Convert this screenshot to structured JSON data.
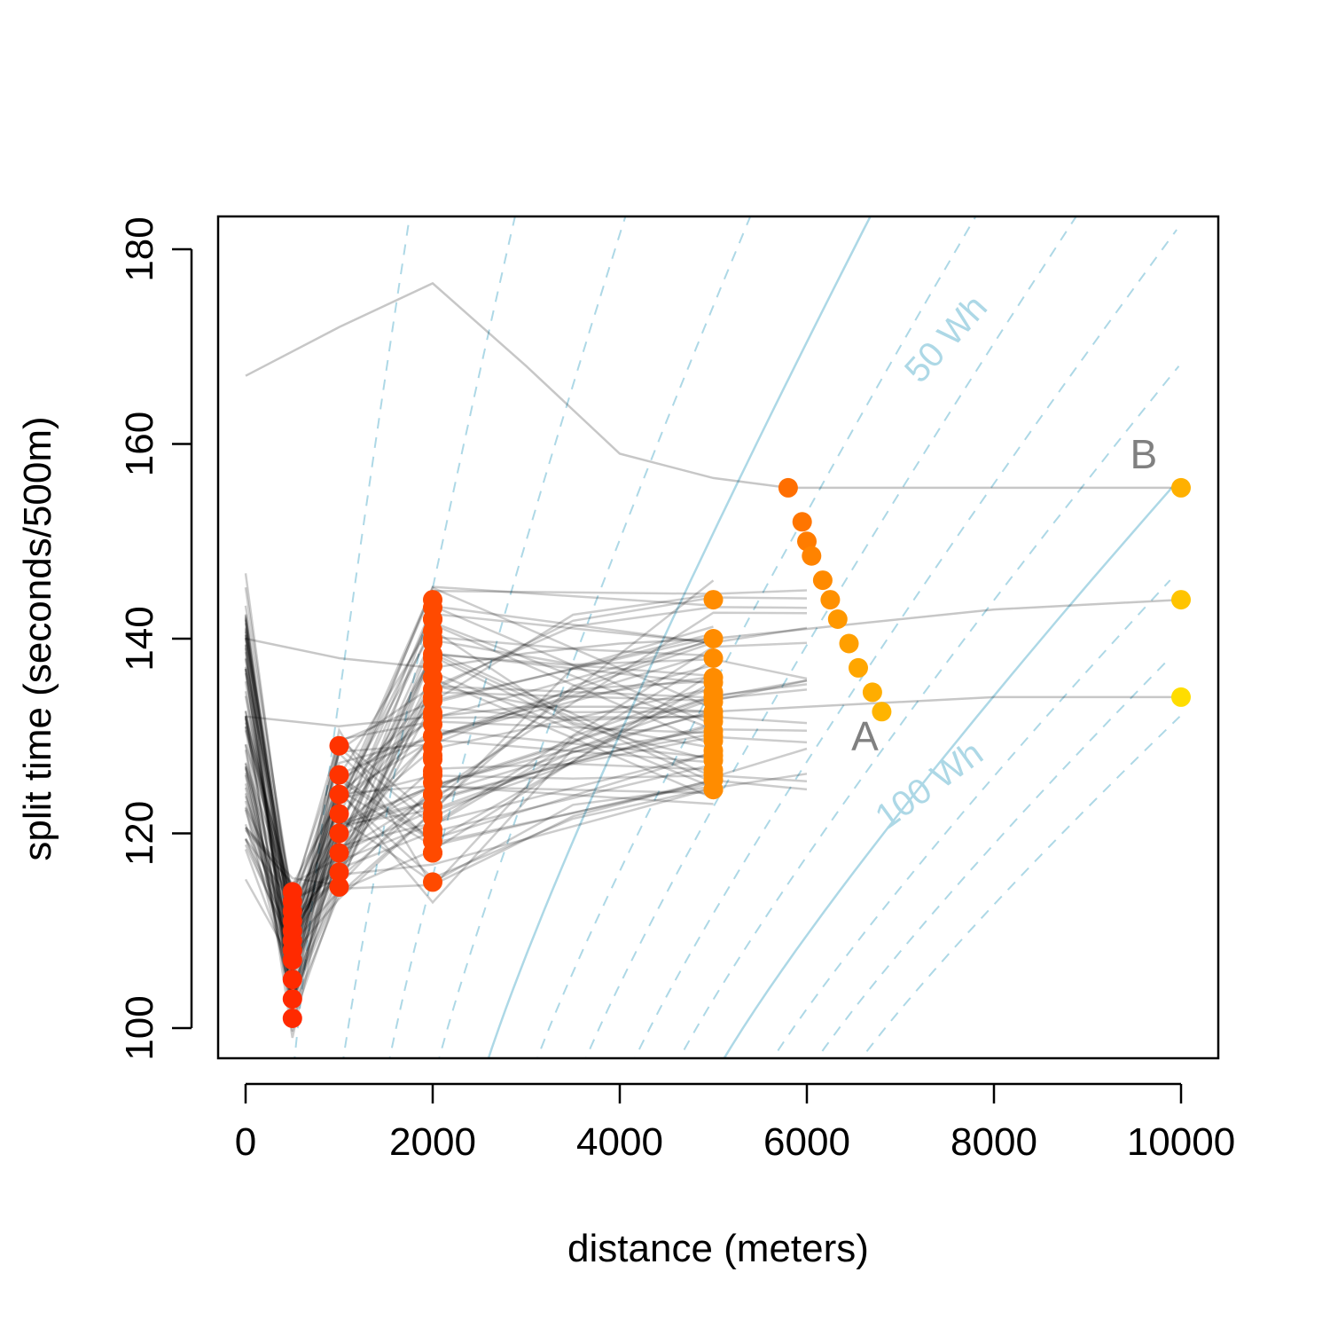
{
  "chart_data": {
    "type": "scatter",
    "title": "",
    "xlabel": "distance (meters)",
    "ylabel": "split time (seconds/500m)",
    "xlim": [
      -1500,
      10000
    ],
    "ylim": [
      97,
      183
    ],
    "xlim_axis": [
      0,
      10000
    ],
    "x_ticks": [
      0,
      2000,
      4000,
      6000,
      8000,
      10000
    ],
    "y_ticks": [
      100,
      120,
      140,
      160,
      180
    ],
    "grid": false,
    "legend": "none",
    "colors": {
      "lines": "#000000",
      "contours": "#add8e6",
      "labels": "#808080",
      "red": "#ff2200",
      "orange": "#ff8800",
      "yellow": "#ffdd00"
    },
    "contour_labels": [
      {
        "text": "50 Wh",
        "x": 7580,
        "y": 170,
        "angle_deg": -48
      },
      {
        "text": "100 Wh",
        "x": 7380,
        "y": 124,
        "angle_deg": -36
      }
    ],
    "point_labels": [
      {
        "text": "A",
        "x": 6620,
        "y": 128.5
      },
      {
        "text": "B",
        "x": 9600,
        "y": 157.5
      }
    ],
    "series": [
      {
        "x": [
          0,
          1000,
          2000,
          3000,
          4000,
          5000,
          5800,
          10000
        ],
        "y": [
          167,
          172,
          176.5,
          168,
          159,
          156.5,
          155.5,
          155.5
        ]
      },
      {
        "x": [
          0,
          1000,
          2000,
          3000,
          4000,
          5000,
          6000,
          8000,
          10000
        ],
        "y": [
          140,
          138,
          137,
          138.5,
          139.5,
          140,
          141,
          143,
          144
        ]
      },
      {
        "x": [
          0,
          1000,
          2000,
          3000,
          4000,
          5000,
          6000,
          8000,
          10000
        ],
        "y": [
          132,
          131,
          132,
          133,
          133,
          132.5,
          133,
          134,
          134
        ]
      }
    ],
    "points": {
      "d500": [
        101,
        103,
        105,
        107,
        108,
        109,
        110,
        111,
        112,
        113,
        114
      ],
      "d1000": [
        114.5,
        116,
        118,
        120,
        122,
        124,
        126,
        129
      ],
      "d2000": [
        115,
        118,
        120,
        122,
        124,
        126,
        128,
        130,
        132,
        134,
        136,
        138,
        140,
        142,
        144
      ],
      "d5000": [
        124.5,
        126,
        128,
        130,
        132,
        134,
        136,
        138,
        140,
        144
      ],
      "d6000_run": [
        {
          "x": 5800,
          "y": 155.5
        },
        {
          "x": 5950,
          "y": 152
        },
        {
          "x": 6000,
          "y": 150
        },
        {
          "x": 6050,
          "y": 148.5
        },
        {
          "x": 6170,
          "y": 146
        },
        {
          "x": 6250,
          "y": 144
        },
        {
          "x": 6330,
          "y": 142
        },
        {
          "x": 6450,
          "y": 139.5
        },
        {
          "x": 6550,
          "y": 137
        },
        {
          "x": 6700,
          "y": 134.5
        },
        {
          "x": 6800,
          "y": 132.5
        }
      ],
      "d10000": [
        134,
        144,
        155.5
      ]
    }
  }
}
